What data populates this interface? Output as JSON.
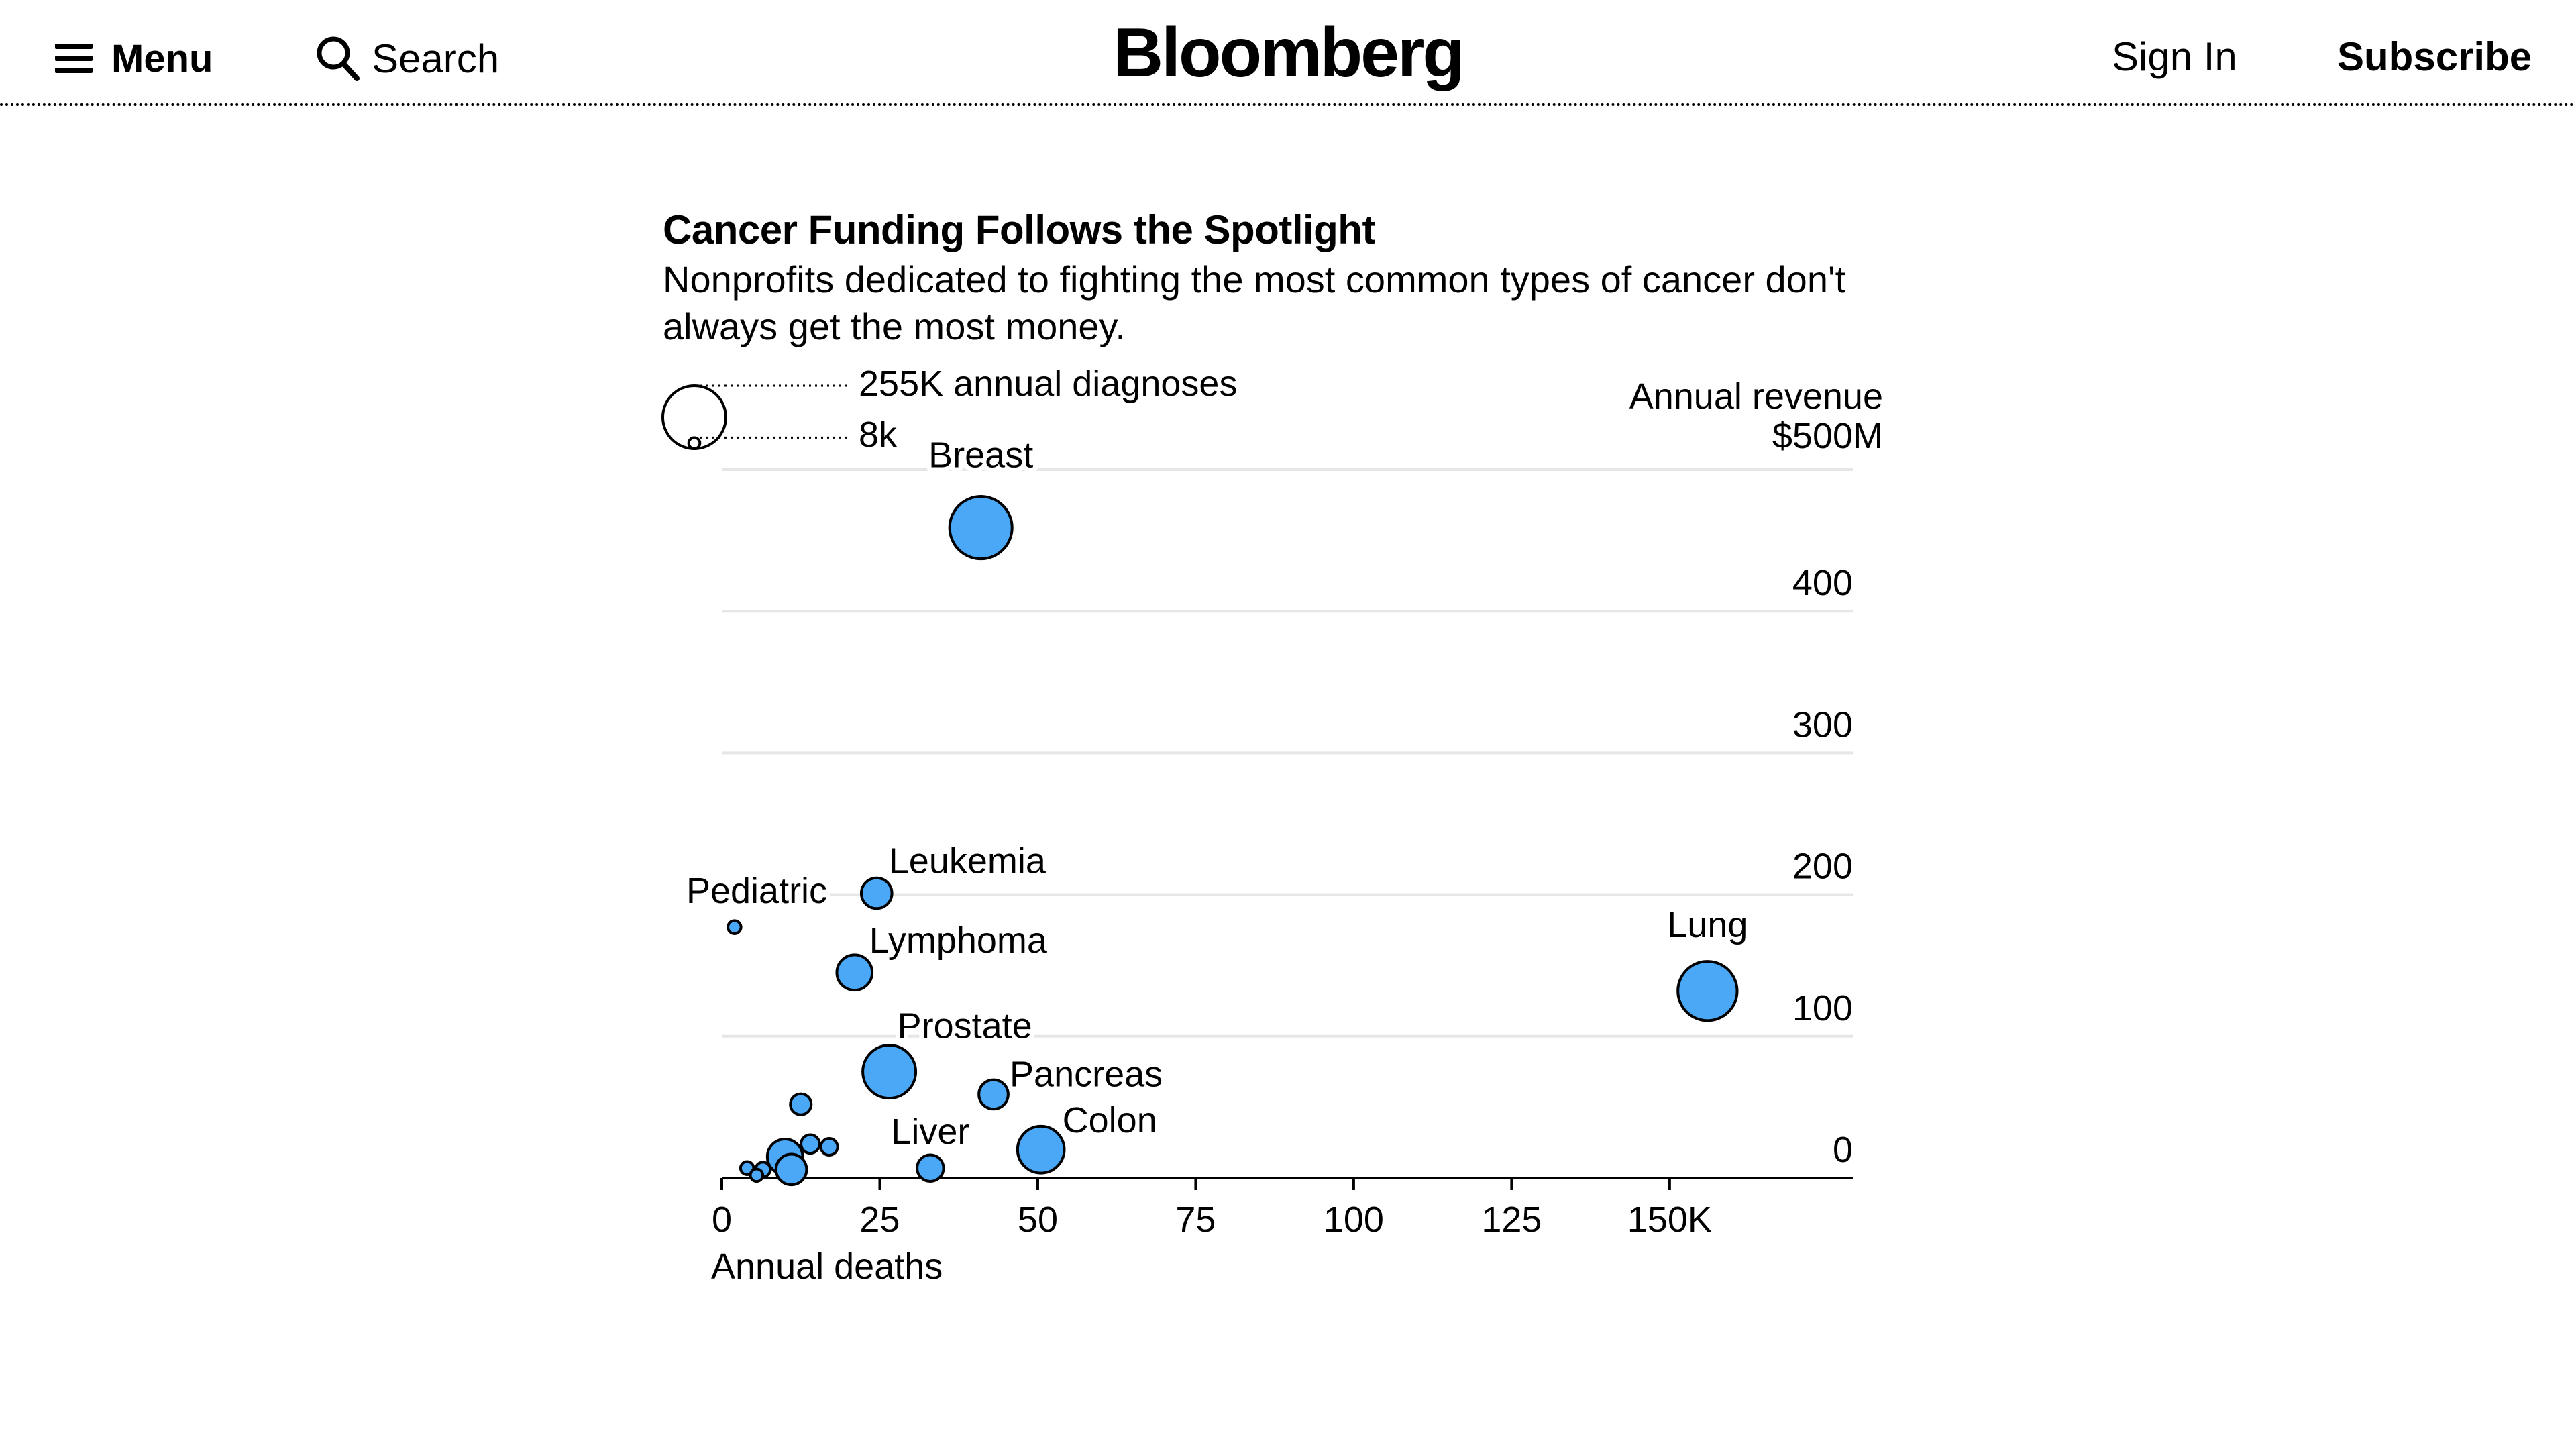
{
  "header": {
    "menu_label": "Menu",
    "search_label": "Search",
    "logo": "Bloomberg",
    "signin_label": "Sign In",
    "subscribe_label": "Subscribe"
  },
  "chart_data": {
    "type": "scatter",
    "title": "Cancer Funding Follows the Spotlight",
    "subtitle": "Nonprofits dedicated to fighting the most common types of cancer don't always get the most money.",
    "xlabel": "Annual deaths",
    "ylabel": "Annual revenue",
    "ylabel_unit_top": "$500M",
    "x_ticks": [
      0,
      25,
      50,
      75,
      100,
      125,
      150
    ],
    "x_tick_labels": [
      "0",
      "25",
      "50",
      "75",
      "100",
      "125",
      "150K"
    ],
    "y_ticks": [
      0,
      100,
      200,
      300,
      400
    ],
    "y_tick_labels": [
      "0",
      "100",
      "200",
      "300",
      "400"
    ],
    "xlim": [
      0,
      179
    ],
    "ylim": [
      0,
      500
    ],
    "grid": "horizontal",
    "size_legend": {
      "large_value": 255,
      "large_label": "255K annual diagnoses",
      "small_value": 8,
      "small_label": "8k"
    },
    "points": [
      {
        "label": "Breast",
        "x": 41,
        "y": 459,
        "diagnoses": 250
      },
      {
        "label": "Leukemia",
        "x": 24.5,
        "y": 201,
        "diagnoses": 60
      },
      {
        "label": "Pediatric",
        "x": 2,
        "y": 177,
        "diagnoses": 11
      },
      {
        "label": "Lymphoma",
        "x": 21,
        "y": 145,
        "diagnoses": 80
      },
      {
        "label": "Lung",
        "x": 156,
        "y": 132,
        "diagnoses": 225
      },
      {
        "label": "Prostate",
        "x": 26.5,
        "y": 75,
        "diagnoses": 180
      },
      {
        "label": "Pancreas",
        "x": 43,
        "y": 59,
        "diagnoses": 55
      },
      {
        "label": "Colon",
        "x": 50.5,
        "y": 20,
        "diagnoses": 140
      },
      {
        "label": "Liver",
        "x": 33,
        "y": 7,
        "diagnoses": 45
      },
      {
        "label": "",
        "x": 12.5,
        "y": 52,
        "diagnoses": 28
      },
      {
        "label": "",
        "x": 14,
        "y": 24,
        "diagnoses": 22
      },
      {
        "label": "",
        "x": 17,
        "y": 22,
        "diagnoses": 18
      },
      {
        "label": "",
        "x": 10,
        "y": 15,
        "diagnoses": 80
      },
      {
        "label": "",
        "x": 11,
        "y": 6,
        "diagnoses": 60
      },
      {
        "label": "",
        "x": 6.5,
        "y": 6,
        "diagnoses": 14
      },
      {
        "label": "",
        "x": 4,
        "y": 7,
        "diagnoses": 11
      },
      {
        "label": "",
        "x": 5.5,
        "y": 2,
        "diagnoses": 10
      }
    ]
  }
}
